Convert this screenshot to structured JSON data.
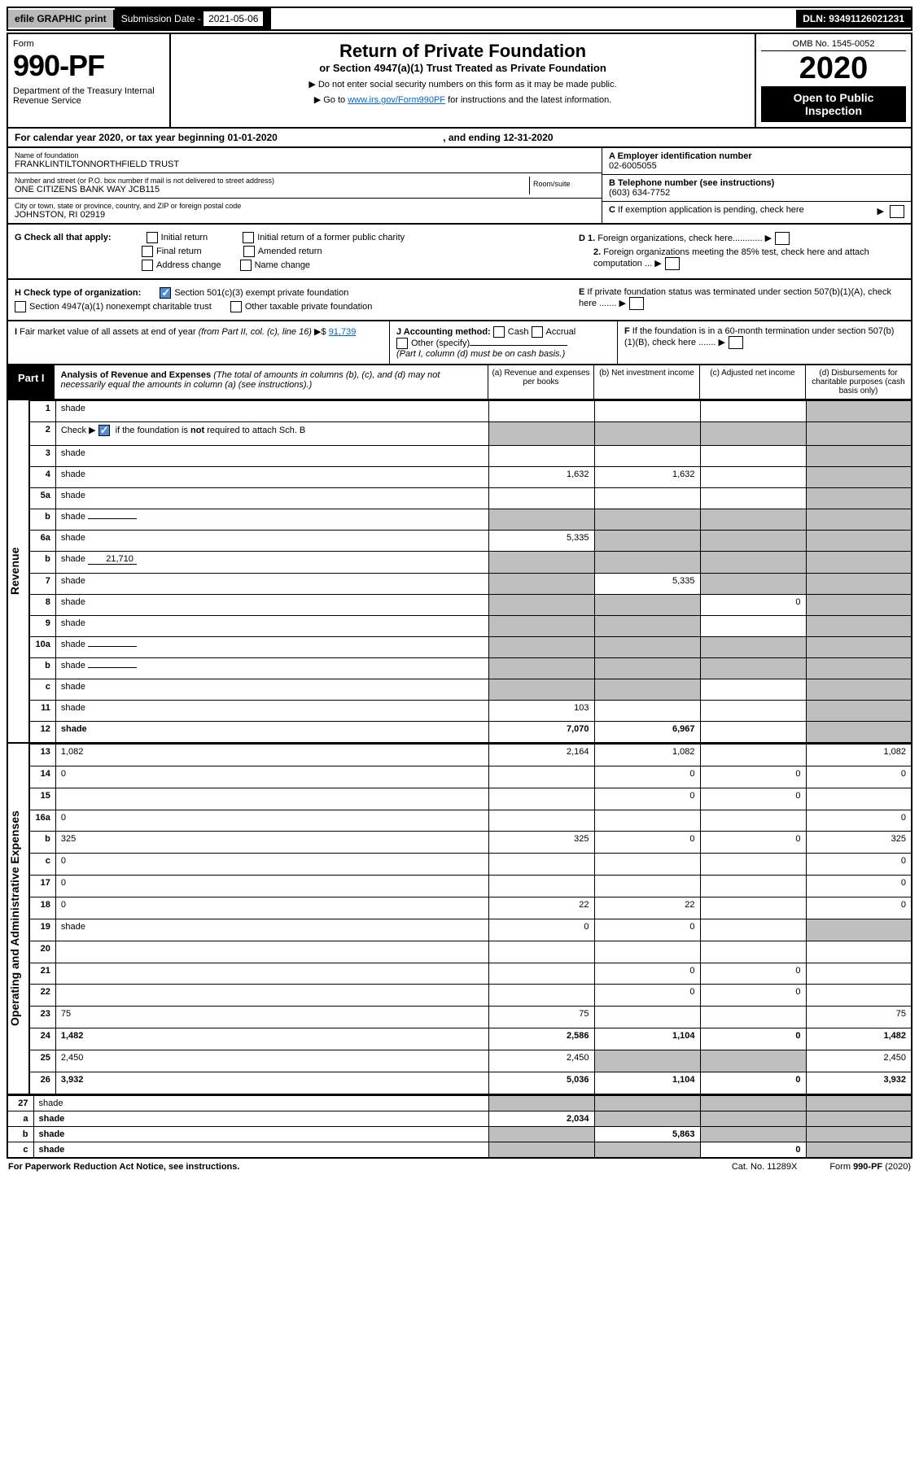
{
  "top": {
    "efile": "efile GRAPHIC print",
    "sub_label": "Submission Date - ",
    "sub_date": "2021-05-06",
    "dln": "DLN: 93491126021231"
  },
  "header": {
    "form_word": "Form",
    "form_num": "990-PF",
    "dept": "Department of the Treasury\nInternal Revenue Service",
    "title": "Return of Private Foundation",
    "subtitle": "or Section 4947(a)(1) Trust Treated as Private Foundation",
    "note1": "▶ Do not enter social security numbers on this form as it may be made public.",
    "note2_pre": "▶ Go to ",
    "note2_link": "www.irs.gov/Form990PF",
    "note2_post": " for instructions and the latest information.",
    "omb": "OMB No. 1545-0052",
    "year": "2020",
    "open": "Open to Public Inspection"
  },
  "calendar": {
    "text_pre": "For calendar year 2020, or tax year beginning ",
    "begin": "01-01-2020",
    "mid": ", and ending ",
    "end": "12-31-2020"
  },
  "info": {
    "name_label": "Name of foundation",
    "name": "FRANKLINTILTONNORTHFIELD TRUST",
    "addr_label": "Number and street (or P.O. box number if mail is not delivered to street address)",
    "addr": "ONE CITIZENS BANK WAY JCB115",
    "room_label": "Room/suite",
    "city_label": "City or town, state or province, country, and ZIP or foreign postal code",
    "city": "JOHNSTON, RI  02919",
    "a_label": "A Employer identification number",
    "a_val": "02-6005055",
    "b_label": "B Telephone number (see instructions)",
    "b_val": "(603) 634-7752",
    "c_label": "C If exemption application is pending, check here"
  },
  "checks": {
    "g_label": "G Check all that apply:",
    "g_opts": [
      "Initial return",
      "Final return",
      "Address change",
      "Initial return of a former public charity",
      "Amended return",
      "Name change"
    ],
    "h_label": "H Check type of organization:",
    "h1": "Section 501(c)(3) exempt private foundation",
    "h2": "Section 4947(a)(1) nonexempt charitable trust",
    "h3": "Other taxable private foundation",
    "d1": "D 1. Foreign organizations, check here",
    "d2": "2. Foreign organizations meeting the 85% test, check here and attach computation",
    "e": "E If private foundation status was terminated under section 507(b)(1)(A), check here",
    "i_label": "I Fair market value of all assets at end of year (from Part II, col. (c), line 16) ▶$ ",
    "i_val": "91,739",
    "j_label": "J Accounting method:",
    "j_cash": "Cash",
    "j_accrual": "Accrual",
    "j_other": "Other (specify)",
    "j_note": "(Part I, column (d) must be on cash basis.)",
    "f": "F If the foundation is in a 60-month termination under section 507(b)(1)(B), check here"
  },
  "part1": {
    "label": "Part I",
    "title": "Analysis of Revenue and Expenses",
    "note": "(The total of amounts in columns (b), (c), and (d) may not necessarily equal the amounts in column (a) (see instructions).)",
    "cols": {
      "a": "(a) Revenue and expenses per books",
      "b": "(b) Net investment income",
      "c": "(c) Adjusted net income",
      "d": "(d) Disbursements for charitable purposes (cash basis only)"
    }
  },
  "side": {
    "rev": "Revenue",
    "exp": "Operating and Administrative Expenses"
  },
  "rows": [
    {
      "n": "1",
      "d": "shade",
      "a": "",
      "b": "",
      "c": ""
    },
    {
      "n": "2",
      "d": "shade",
      "a": "shade",
      "b": "shade",
      "c": "shade",
      "hasCheck": true
    },
    {
      "n": "3",
      "d": "shade",
      "a": "",
      "b": "",
      "c": ""
    },
    {
      "n": "4",
      "d": "shade",
      "a": "1,632",
      "b": "1,632",
      "c": ""
    },
    {
      "n": "5a",
      "d": "shade",
      "a": "",
      "b": "",
      "c": ""
    },
    {
      "n": "b",
      "d": "shade",
      "a": "shade",
      "b": "shade",
      "c": "shade",
      "inline": ""
    },
    {
      "n": "6a",
      "d": "shade",
      "a": "5,335",
      "b": "shade",
      "c": "shade"
    },
    {
      "n": "b",
      "d": "shade",
      "a": "shade",
      "b": "shade",
      "c": "shade",
      "inline": "21,710"
    },
    {
      "n": "7",
      "d": "shade",
      "a": "shade",
      "b": "5,335",
      "c": "shade"
    },
    {
      "n": "8",
      "d": "shade",
      "a": "shade",
      "b": "shade",
      "c": "0"
    },
    {
      "n": "9",
      "d": "shade",
      "a": "shade",
      "b": "shade",
      "c": ""
    },
    {
      "n": "10a",
      "d": "shade",
      "a": "shade",
      "b": "shade",
      "c": "shade",
      "inline": ""
    },
    {
      "n": "b",
      "d": "shade",
      "a": "shade",
      "b": "shade",
      "c": "shade",
      "inline": ""
    },
    {
      "n": "c",
      "d": "shade",
      "a": "shade",
      "b": "shade",
      "c": ""
    },
    {
      "n": "11",
      "d": "shade",
      "a": "103",
      "b": "",
      "c": ""
    },
    {
      "n": "12",
      "d": "shade",
      "a": "7,070",
      "b": "6,967",
      "c": "",
      "bold": true
    }
  ],
  "exp_rows": [
    {
      "n": "13",
      "d": "1,082",
      "a": "2,164",
      "b": "1,082",
      "c": ""
    },
    {
      "n": "14",
      "d": "0",
      "a": "",
      "b": "0",
      "c": "0"
    },
    {
      "n": "15",
      "d": "",
      "a": "",
      "b": "0",
      "c": "0"
    },
    {
      "n": "16a",
      "d": "0",
      "a": "",
      "b": "",
      "c": ""
    },
    {
      "n": "b",
      "d": "325",
      "a": "325",
      "b": "0",
      "c": "0"
    },
    {
      "n": "c",
      "d": "0",
      "a": "",
      "b": "",
      "c": ""
    },
    {
      "n": "17",
      "d": "0",
      "a": "",
      "b": "",
      "c": ""
    },
    {
      "n": "18",
      "d": "0",
      "a": "22",
      "b": "22",
      "c": ""
    },
    {
      "n": "19",
      "d": "shade",
      "a": "0",
      "b": "0",
      "c": ""
    },
    {
      "n": "20",
      "d": "",
      "a": "",
      "b": "",
      "c": ""
    },
    {
      "n": "21",
      "d": "",
      "a": "",
      "b": "0",
      "c": "0"
    },
    {
      "n": "22",
      "d": "",
      "a": "",
      "b": "0",
      "c": "0"
    },
    {
      "n": "23",
      "d": "75",
      "a": "75",
      "b": "",
      "c": ""
    },
    {
      "n": "24",
      "d": "1,482",
      "a": "2,586",
      "b": "1,104",
      "c": "0",
      "bold": true
    },
    {
      "n": "25",
      "d": "2,450",
      "a": "2,450",
      "b": "shade",
      "c": "shade"
    },
    {
      "n": "26",
      "d": "3,932",
      "a": "5,036",
      "b": "1,104",
      "c": "0",
      "bold": true
    }
  ],
  "bottom_rows": [
    {
      "n": "27",
      "d": "shade",
      "a": "shade",
      "b": "shade",
      "c": "shade"
    },
    {
      "n": "a",
      "d": "shade",
      "a": "2,034",
      "b": "shade",
      "c": "shade",
      "bold": true
    },
    {
      "n": "b",
      "d": "shade",
      "a": "shade",
      "b": "5,863",
      "c": "shade",
      "bold": true
    },
    {
      "n": "c",
      "d": "shade",
      "a": "shade",
      "b": "shade",
      "c": "0",
      "bold": true
    }
  ],
  "footer": {
    "left": "For Paperwork Reduction Act Notice, see instructions.",
    "mid": "Cat. No. 11289X",
    "right": "Form 990-PF (2020)"
  }
}
